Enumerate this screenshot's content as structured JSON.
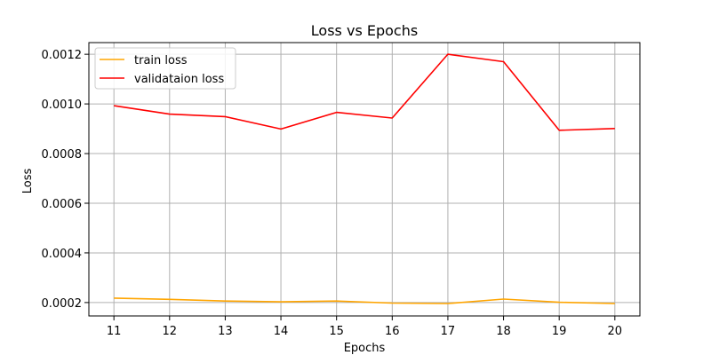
{
  "chart_data": {
    "type": "line",
    "title": "Loss vs Epochs",
    "xlabel": "Epochs",
    "ylabel": "Loss",
    "x": [
      11,
      12,
      13,
      14,
      15,
      16,
      17,
      18,
      19,
      20
    ],
    "xticks": [
      11,
      12,
      13,
      14,
      15,
      16,
      17,
      18,
      19,
      20
    ],
    "xlim": [
      10.55,
      20.45
    ],
    "yticks": [
      0.0002,
      0.0004,
      0.0006,
      0.0008,
      0.001,
      0.0012
    ],
    "ytick_labels": [
      "0.0002",
      "0.0004",
      "0.0006",
      "0.0008",
      "0.0010",
      "0.0012"
    ],
    "ylim": [
      0.000146,
      0.001247
    ],
    "grid": true,
    "legend_position": "top-left",
    "series": [
      {
        "name": "train loss",
        "color": "#FFA500",
        "values": [
          0.000218,
          0.000213,
          0.000206,
          0.000203,
          0.000206,
          0.000198,
          0.000196,
          0.000214,
          0.000201,
          0.000196
        ]
      },
      {
        "name": "validataion loss",
        "color": "#FF0000",
        "values": [
          0.000993,
          0.000959,
          0.000949,
          0.000899,
          0.000966,
          0.000943,
          0.0012,
          0.00117,
          0.000894,
          0.000901
        ]
      }
    ]
  }
}
